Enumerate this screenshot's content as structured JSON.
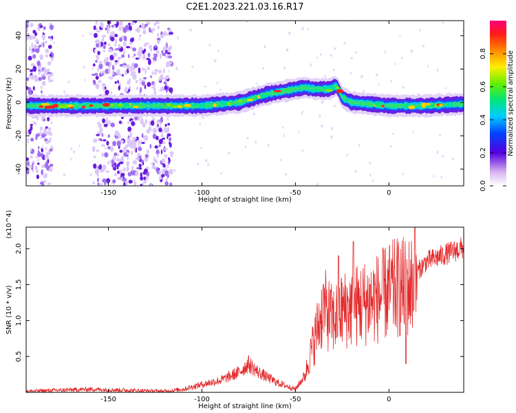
{
  "title": "C2E1.2023.221.03.16.R17",
  "chart_data": [
    {
      "type": "heatmap",
      "xlabel": "Height of straight line (km)",
      "ylabel": "Frequency (Hz)",
      "xlim": [
        -194,
        40
      ],
      "ylim": [
        -50,
        49
      ],
      "xticks": [
        -150,
        -100,
        -50,
        0
      ],
      "yticks": [
        -40,
        -20,
        0,
        20,
        40
      ],
      "colorbar": {
        "label": "Normalized spectral amplitude",
        "range": [
          0,
          1
        ],
        "ticks": [
          0.0,
          0.2,
          0.4,
          0.6,
          0.8
        ]
      },
      "ridge": {
        "x": [
          -194,
          -150,
          -120,
          -100,
          -80,
          -65,
          -55,
          -45,
          -40,
          -32,
          -28,
          -25,
          -20,
          -10,
          0,
          10,
          20,
          40
        ],
        "y": [
          -2,
          -2,
          -2,
          -2,
          0,
          5,
          7,
          9,
          8,
          8,
          10,
          3,
          0,
          -1,
          -2,
          -2,
          -2,
          -1
        ]
      },
      "noise_regions": [
        {
          "x": [
            -194,
            -180
          ],
          "y": [
            -50,
            49
          ]
        },
        {
          "x": [
            -158,
            -116
          ],
          "y": [
            -50,
            49
          ]
        }
      ]
    },
    {
      "type": "line",
      "xlabel": "Height of straight line (km)",
      "ylabel": "SNR (10 * v/v)",
      "y_multiplier": "(x10^4)",
      "xlim": [
        -194,
        40
      ],
      "ylim": [
        0,
        2.3
      ],
      "xticks": [
        -150,
        -100,
        -50,
        0
      ],
      "yticks": [
        0.5,
        1.0,
        1.5,
        2.0
      ],
      "color": "#e3292a",
      "envelope": {
        "x": [
          -194,
          -160,
          -120,
          -110,
          -100,
          -90,
          -80,
          -75,
          -70,
          -60,
          -50,
          -45,
          -40,
          -35,
          -30,
          -25,
          -20,
          -15,
          -10,
          -5,
          0,
          5,
          10,
          15,
          20,
          30,
          40
        ],
        "y": [
          0.02,
          0.05,
          0.02,
          0.05,
          0.12,
          0.18,
          0.3,
          0.42,
          0.3,
          0.15,
          0.05,
          0.25,
          0.8,
          1.3,
          1.1,
          1.25,
          1.3,
          1.35,
          1.4,
          1.45,
          1.55,
          1.6,
          1.6,
          1.7,
          1.85,
          1.95,
          2.05
        ]
      },
      "spikes": [
        {
          "x": -35,
          "y": 1.5
        },
        {
          "x": -27,
          "y": 1.9
        },
        {
          "x": -19,
          "y": 2.1
        },
        {
          "x": -10,
          "y": 1.5
        },
        {
          "x": 14,
          "y": 2.3
        },
        {
          "x": 9,
          "y": 0.4
        }
      ]
    }
  ]
}
